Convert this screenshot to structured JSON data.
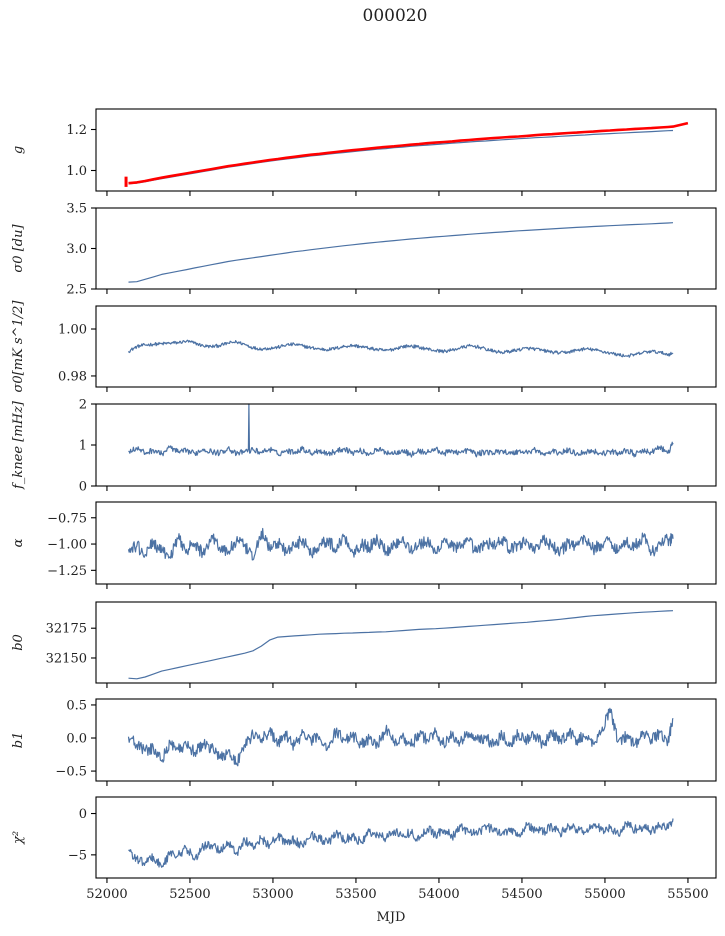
{
  "figure": {
    "title": "000020"
  },
  "chart_data": {
    "type": "line",
    "title": "000020",
    "xlabel": "MJD",
    "xlim": [
      51934,
      55669
    ],
    "xticks": [
      52000,
      52500,
      53000,
      53500,
      54000,
      54500,
      55000,
      55500
    ],
    "xtick_labels": [
      "52000",
      "52500",
      "53000",
      "53500",
      "54000",
      "54500",
      "55000",
      "55500"
    ],
    "shared_x": true,
    "grid": false,
    "colors": {
      "series": "#4c72a4",
      "model": "#ff0000"
    },
    "x": [
      52130,
      52180,
      52230,
      52280,
      52330,
      52380,
      52430,
      52480,
      52530,
      52580,
      52630,
      52680,
      52730,
      52780,
      52830,
      52880,
      52930,
      52980,
      53030,
      53080,
      53130,
      53180,
      53230,
      53280,
      53330,
      53380,
      53430,
      53480,
      53530,
      53580,
      53630,
      53680,
      53730,
      53780,
      53830,
      53880,
      53930,
      53980,
      54030,
      54080,
      54130,
      54180,
      54230,
      54280,
      54330,
      54380,
      54430,
      54480,
      54530,
      54580,
      54630,
      54680,
      54730,
      54780,
      54830,
      54880,
      54930,
      54980,
      55030,
      55080,
      55130,
      55180,
      55230,
      55280,
      55330,
      55380,
      55410
    ],
    "panels": [
      {
        "ylabel": "g",
        "ylim": [
          0.9,
          1.3
        ],
        "yticks": [
          1.0,
          1.2
        ],
        "ytick_labels": [
          "1.0",
          "1.2"
        ],
        "series": [
          {
            "name": "g",
            "color": "#4c72a4",
            "values": [
              0.935,
              0.938,
              0.945,
              0.953,
              0.96,
              0.967,
              0.974,
              0.981,
              0.988,
              0.995,
              1.002,
              1.009,
              1.016,
              1.022,
              1.028,
              1.034,
              1.04,
              1.046,
              1.051,
              1.056,
              1.061,
              1.066,
              1.071,
              1.075,
              1.08,
              1.084,
              1.088,
              1.092,
              1.096,
              1.1,
              1.104,
              1.107,
              1.111,
              1.114,
              1.118,
              1.121,
              1.124,
              1.127,
              1.13,
              1.133,
              1.136,
              1.139,
              1.142,
              1.144,
              1.147,
              1.15,
              1.152,
              1.155,
              1.157,
              1.16,
              1.162,
              1.164,
              1.167,
              1.169,
              1.171,
              1.173,
              1.176,
              1.178,
              1.18,
              1.182,
              1.184,
              1.186,
              1.188,
              1.19,
              1.192,
              1.194,
              1.195
            ]
          },
          {
            "name": "g model",
            "color": "#ff0000",
            "x_extra_end": 55500,
            "value_extra_end": 1.231,
            "errorbar": {
              "x": 52115,
              "y": 0.945,
              "yerr": 0.025
            },
            "values": [
              0.938,
              0.942,
              0.949,
              0.957,
              0.965,
              0.972,
              0.979,
              0.986,
              0.993,
              1.0,
              1.007,
              1.014,
              1.021,
              1.027,
              1.033,
              1.039,
              1.045,
              1.051,
              1.056,
              1.062,
              1.067,
              1.072,
              1.077,
              1.081,
              1.086,
              1.09,
              1.095,
              1.099,
              1.103,
              1.107,
              1.111,
              1.115,
              1.118,
              1.122,
              1.126,
              1.129,
              1.133,
              1.136,
              1.139,
              1.142,
              1.146,
              1.149,
              1.152,
              1.155,
              1.158,
              1.161,
              1.164,
              1.166,
              1.169,
              1.172,
              1.175,
              1.177,
              1.18,
              1.183,
              1.185,
              1.188,
              1.19,
              1.193,
              1.195,
              1.198,
              1.2,
              1.203,
              1.205,
              1.207,
              1.21,
              1.212,
              1.214
            ]
          }
        ]
      },
      {
        "ylabel": "σ0 [du]",
        "ylim": [
          2.5,
          3.5
        ],
        "yticks": [
          2.5,
          3.0,
          3.5
        ],
        "ytick_labels": [
          "2.5",
          "3.0",
          "3.5"
        ],
        "series": [
          {
            "name": "sigma0_du",
            "color": "#4c72a4",
            "values": [
              2.585,
              2.59,
              2.62,
              2.65,
              2.68,
              2.7,
              2.72,
              2.74,
              2.76,
              2.78,
              2.8,
              2.82,
              2.84,
              2.855,
              2.87,
              2.885,
              2.9,
              2.915,
              2.93,
              2.945,
              2.96,
              2.972,
              2.985,
              2.998,
              3.01,
              3.022,
              3.034,
              3.046,
              3.057,
              3.068,
              3.078,
              3.088,
              3.098,
              3.108,
              3.117,
              3.126,
              3.135,
              3.143,
              3.151,
              3.159,
              3.167,
              3.175,
              3.183,
              3.19,
              3.197,
              3.204,
              3.211,
              3.218,
              3.224,
              3.23,
              3.236,
              3.242,
              3.248,
              3.254,
              3.26,
              3.266,
              3.271,
              3.276,
              3.281,
              3.286,
              3.291,
              3.296,
              3.3,
              3.305,
              3.31,
              3.315,
              3.318
            ]
          }
        ]
      },
      {
        "ylabel": "σ0[mK s^1/2]",
        "ylim": [
          0.9753,
          1.0098
        ],
        "yticks": [
          0.98,
          1.0
        ],
        "ytick_labels": [
          "0.98",
          "1.00"
        ],
        "series": [
          {
            "name": "sigma0_mK",
            "color": "#4c72a4",
            "values": [
              0.9905,
              0.9925,
              0.9932,
              0.9935,
              0.9937,
              0.994,
              0.9942,
              0.9948,
              0.994,
              0.9928,
              0.9925,
              0.993,
              0.994,
              0.9945,
              0.9935,
              0.992,
              0.9915,
              0.9918,
              0.9922,
              0.9932,
              0.9935,
              0.9928,
              0.992,
              0.9915,
              0.9912,
              0.9918,
              0.9926,
              0.993,
              0.9925,
              0.9918,
              0.9912,
              0.9908,
              0.9915,
              0.9925,
              0.9928,
              0.9922,
              0.9915,
              0.9908,
              0.9905,
              0.991,
              0.992,
              0.9928,
              0.9925,
              0.9915,
              0.9905,
              0.99,
              0.9905,
              0.9912,
              0.9918,
              0.9915,
              0.9908,
              0.9902,
              0.9898,
              0.9902,
              0.991,
              0.9915,
              0.9912,
              0.9905,
              0.9898,
              0.989,
              0.9885,
              0.989,
              0.99,
              0.9905,
              0.99,
              0.9892,
              0.9895
            ]
          }
        ]
      },
      {
        "ylabel": "f_knee [mHz]",
        "ylim": [
          0,
          2
        ],
        "yticks": [
          0,
          1,
          2
        ],
        "ytick_labels": [
          "0",
          "1",
          "2"
        ],
        "series": [
          {
            "name": "fknee",
            "color": "#4c72a4",
            "spike": {
              "x": 52855,
              "y": 2.0
            },
            "values": [
              0.85,
              0.92,
              0.8,
              0.88,
              0.78,
              0.95,
              0.82,
              0.86,
              0.79,
              0.9,
              0.84,
              0.8,
              0.93,
              0.77,
              0.85,
              0.88,
              0.82,
              0.9,
              0.78,
              0.86,
              0.83,
              0.91,
              0.8,
              0.87,
              0.79,
              0.84,
              0.92,
              0.81,
              0.86,
              0.78,
              0.89,
              0.83,
              0.8,
              0.88,
              0.76,
              0.85,
              0.82,
              0.9,
              0.79,
              0.86,
              0.81,
              0.88,
              0.77,
              0.84,
              0.8,
              0.87,
              0.78,
              0.85,
              0.82,
              0.89,
              0.76,
              0.84,
              0.81,
              0.87,
              0.79,
              0.83,
              0.86,
              0.78,
              0.84,
              0.8,
              0.88,
              0.77,
              0.85,
              0.82,
              0.95,
              0.8,
              1.05
            ]
          }
        ]
      },
      {
        "ylabel": "α",
        "ylim": [
          -1.38,
          -0.6
        ],
        "yticks": [
          -1.25,
          -1.0,
          -0.75
        ],
        "ytick_labels": [
          "−1.25",
          "−1.00",
          "−0.75"
        ],
        "series": [
          {
            "name": "alpha",
            "color": "#4c72a4",
            "values": [
              -1.05,
              -1.02,
              -1.1,
              -0.98,
              -1.08,
              -1.12,
              -0.95,
              -1.05,
              -1.0,
              -1.1,
              -0.92,
              -1.03,
              -1.08,
              -0.97,
              -1.02,
              -1.15,
              -0.88,
              -1.05,
              -0.98,
              -1.08,
              -1.02,
              -0.95,
              -1.1,
              -1.0,
              -0.97,
              -1.05,
              -0.92,
              -1.08,
              -1.0,
              -1.03,
              -0.96,
              -1.07,
              -1.01,
              -0.94,
              -1.06,
              -1.0,
              -0.98,
              -1.09,
              -0.95,
              -1.02,
              -1.04,
              -0.97,
              -1.08,
              -0.99,
              -1.01,
              -0.95,
              -1.06,
              -1.0,
              -0.98,
              -1.05,
              -0.96,
              -1.03,
              -1.07,
              -0.99,
              -1.01,
              -0.94,
              -1.05,
              -1.0,
              -0.97,
              -1.06,
              -0.98,
              -1.02,
              -0.93,
              -1.08,
              -1.0,
              -0.96,
              -0.95
            ]
          }
        ]
      },
      {
        "ylabel": "b0",
        "ylim": [
          32129,
          32197
        ],
        "yticks": [
          32150,
          32175
        ],
        "ytick_labels": [
          "32150",
          "32175"
        ],
        "series": [
          {
            "name": "b0",
            "color": "#4c72a4",
            "values": [
              32133,
              32132.5,
              32134,
              32136.5,
              32139,
              32140.5,
              32142,
              32143.5,
              32145,
              32146.5,
              32148,
              32149.5,
              32151,
              32152.5,
              32154,
              32156,
              32160,
              32165,
              32167.5,
              32168,
              32168.5,
              32169,
              32169.5,
              32170,
              32170.2,
              32170.5,
              32170.8,
              32171,
              32171.3,
              32171.5,
              32171.8,
              32172,
              32172.5,
              32173,
              32173.5,
              32174,
              32174.3,
              32174.6,
              32175,
              32175.5,
              32176,
              32176.5,
              32177,
              32177.5,
              32178,
              32178.5,
              32179,
              32179.5,
              32180,
              32180.6,
              32181.2,
              32181.8,
              32182.5,
              32183.2,
              32184,
              32184.8,
              32185.5,
              32186,
              32186.5,
              32187,
              32187.5,
              32188,
              32188.4,
              32188.8,
              32189.2,
              32189.5,
              32189.7
            ]
          }
        ]
      },
      {
        "ylabel": "b1",
        "ylim": [
          -0.65,
          0.59
        ],
        "yticks": [
          -0.5,
          0.0,
          0.5
        ],
        "ytick_labels": [
          "−0.5",
          "0.0",
          "0.5"
        ],
        "series": [
          {
            "name": "b1",
            "color": "#4c72a4",
            "values": [
              0.02,
              -0.1,
              -0.2,
              -0.15,
              -0.35,
              -0.05,
              -0.18,
              -0.12,
              -0.22,
              -0.08,
              -0.15,
              -0.3,
              -0.2,
              -0.38,
              -0.1,
              0.05,
              -0.02,
              0.1,
              -0.08,
              0.03,
              -0.12,
              0.08,
              -0.05,
              0.02,
              -0.15,
              0.1,
              -0.03,
              0.05,
              -0.1,
              0.0,
              -0.08,
              0.12,
              -0.05,
              0.03,
              -0.12,
              0.06,
              -0.02,
              0.09,
              -0.1,
              0.04,
              -0.06,
              0.08,
              -0.03,
              0.02,
              -0.12,
              0.05,
              -0.08,
              0.07,
              -0.02,
              0.04,
              -0.1,
              0.06,
              -0.05,
              0.09,
              -0.03,
              0.02,
              -0.08,
              0.1,
              0.45,
              -0.05,
              0.03,
              -0.1,
              0.06,
              -0.02,
              0.08,
              -0.06,
              0.3
            ]
          }
        ]
      },
      {
        "ylabel": "χ²",
        "ylim": [
          -7.8,
          2.0
        ],
        "yticks": [
          -5,
          0
        ],
        "ytick_labels": [
          "−5",
          "0"
        ],
        "series": [
          {
            "name": "chi2",
            "color": "#4c72a4",
            "values": [
              -4.5,
              -5.5,
              -6.0,
              -5.2,
              -6.5,
              -4.8,
              -5.0,
              -4.2,
              -5.5,
              -4.0,
              -3.8,
              -4.5,
              -3.5,
              -4.8,
              -3.2,
              -4.0,
              -3.0,
              -3.8,
              -2.8,
              -3.5,
              -3.2,
              -4.0,
              -2.5,
              -3.0,
              -3.6,
              -2.4,
              -3.2,
              -2.8,
              -3.5,
              -2.2,
              -2.6,
              -3.0,
              -2.0,
              -2.8,
              -2.2,
              -3.2,
              -1.8,
              -2.5,
              -2.0,
              -2.8,
              -1.6,
              -2.2,
              -2.6,
              -1.5,
              -2.0,
              -2.4,
              -1.8,
              -2.6,
              -1.4,
              -2.0,
              -2.2,
              -1.6,
              -2.4,
              -1.5,
              -1.9,
              -2.3,
              -1.3,
              -2.0,
              -1.8,
              -2.5,
              -1.2,
              -1.9,
              -1.6,
              -2.2,
              -1.4,
              -1.8,
              -0.6
            ]
          }
        ]
      }
    ]
  }
}
